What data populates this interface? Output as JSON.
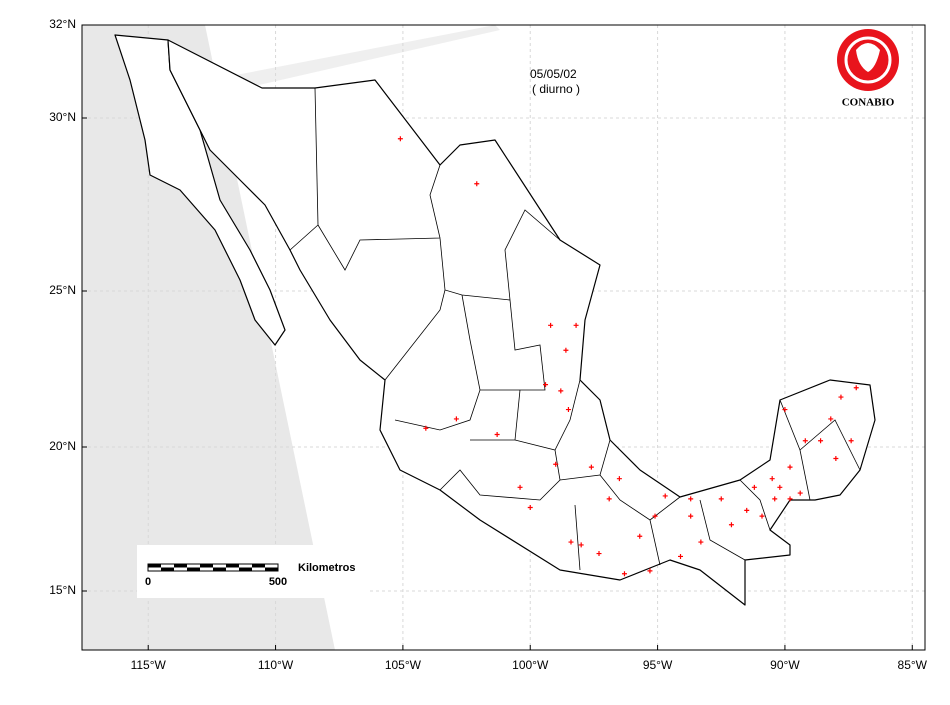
{
  "chart_data": {
    "type": "scatter",
    "title": "05/05/02",
    "subtitle": "( diurno )",
    "logo_text": "CONABIO",
    "scale_bar": {
      "label": "Kilometros",
      "start": "0",
      "end": "500"
    },
    "color": "#ff0000",
    "grid": true,
    "x": [
      -105.1,
      -102.1,
      -99.2,
      -98.2,
      -98.6,
      -99.4,
      -98.5,
      -104.1,
      -101.3,
      -99.0,
      -97.6,
      -96.5,
      -94.7,
      -100.0,
      -98.4,
      -98.0,
      -97.3,
      -95.7,
      -95.1,
      -93.7,
      -93.3,
      -92.5,
      -91.5,
      -90.9,
      -90.5,
      -90.2,
      -89.8,
      -89.4,
      -90.0,
      -88.6,
      -87.8,
      -87.2,
      -88.0,
      -87.4,
      -96.9,
      -96.3,
      -94.1,
      -98.8,
      -100.4,
      -102.9,
      -92.1,
      -95.3,
      -93.7,
      -91.2,
      -90.4,
      -89.8,
      -89.2,
      -88.2
    ],
    "values": [
      29.4,
      28.1,
      23.9,
      23.9,
      23.1,
      22.0,
      21.2,
      20.6,
      20.4,
      19.4,
      19.3,
      18.9,
      18.3,
      17.9,
      16.7,
      16.6,
      16.3,
      16.9,
      17.6,
      17.6,
      16.7,
      18.2,
      17.8,
      17.6,
      18.9,
      18.6,
      19.3,
      18.4,
      21.2,
      20.2,
      21.6,
      21.9,
      19.6,
      20.2,
      18.2,
      15.6,
      16.2,
      21.8,
      18.6,
      20.9,
      17.3,
      15.7,
      18.2,
      18.6,
      18.2,
      18.2,
      20.2,
      20.9
    ],
    "xlim": [
      -117.6,
      -84.5
    ],
    "xticks": [
      {
        "value": -115,
        "label": "115°W"
      },
      {
        "value": -110,
        "label": "110°W"
      },
      {
        "value": -105,
        "label": "105°W"
      },
      {
        "value": -100,
        "label": "100°W"
      },
      {
        "value": -95,
        "label": "95°W"
      },
      {
        "value": -90,
        "label": "90°W"
      },
      {
        "value": -85,
        "label": "85°W"
      }
    ],
    "ylim": [
      13,
      32
    ],
    "yticks": [
      {
        "value": 15,
        "label": "15°N"
      },
      {
        "value": 20,
        "label": "20°N"
      },
      {
        "value": 25,
        "label": "25°N"
      },
      {
        "value": 30,
        "label": "30°N"
      },
      {
        "value": 32,
        "label": "32°N"
      }
    ]
  }
}
